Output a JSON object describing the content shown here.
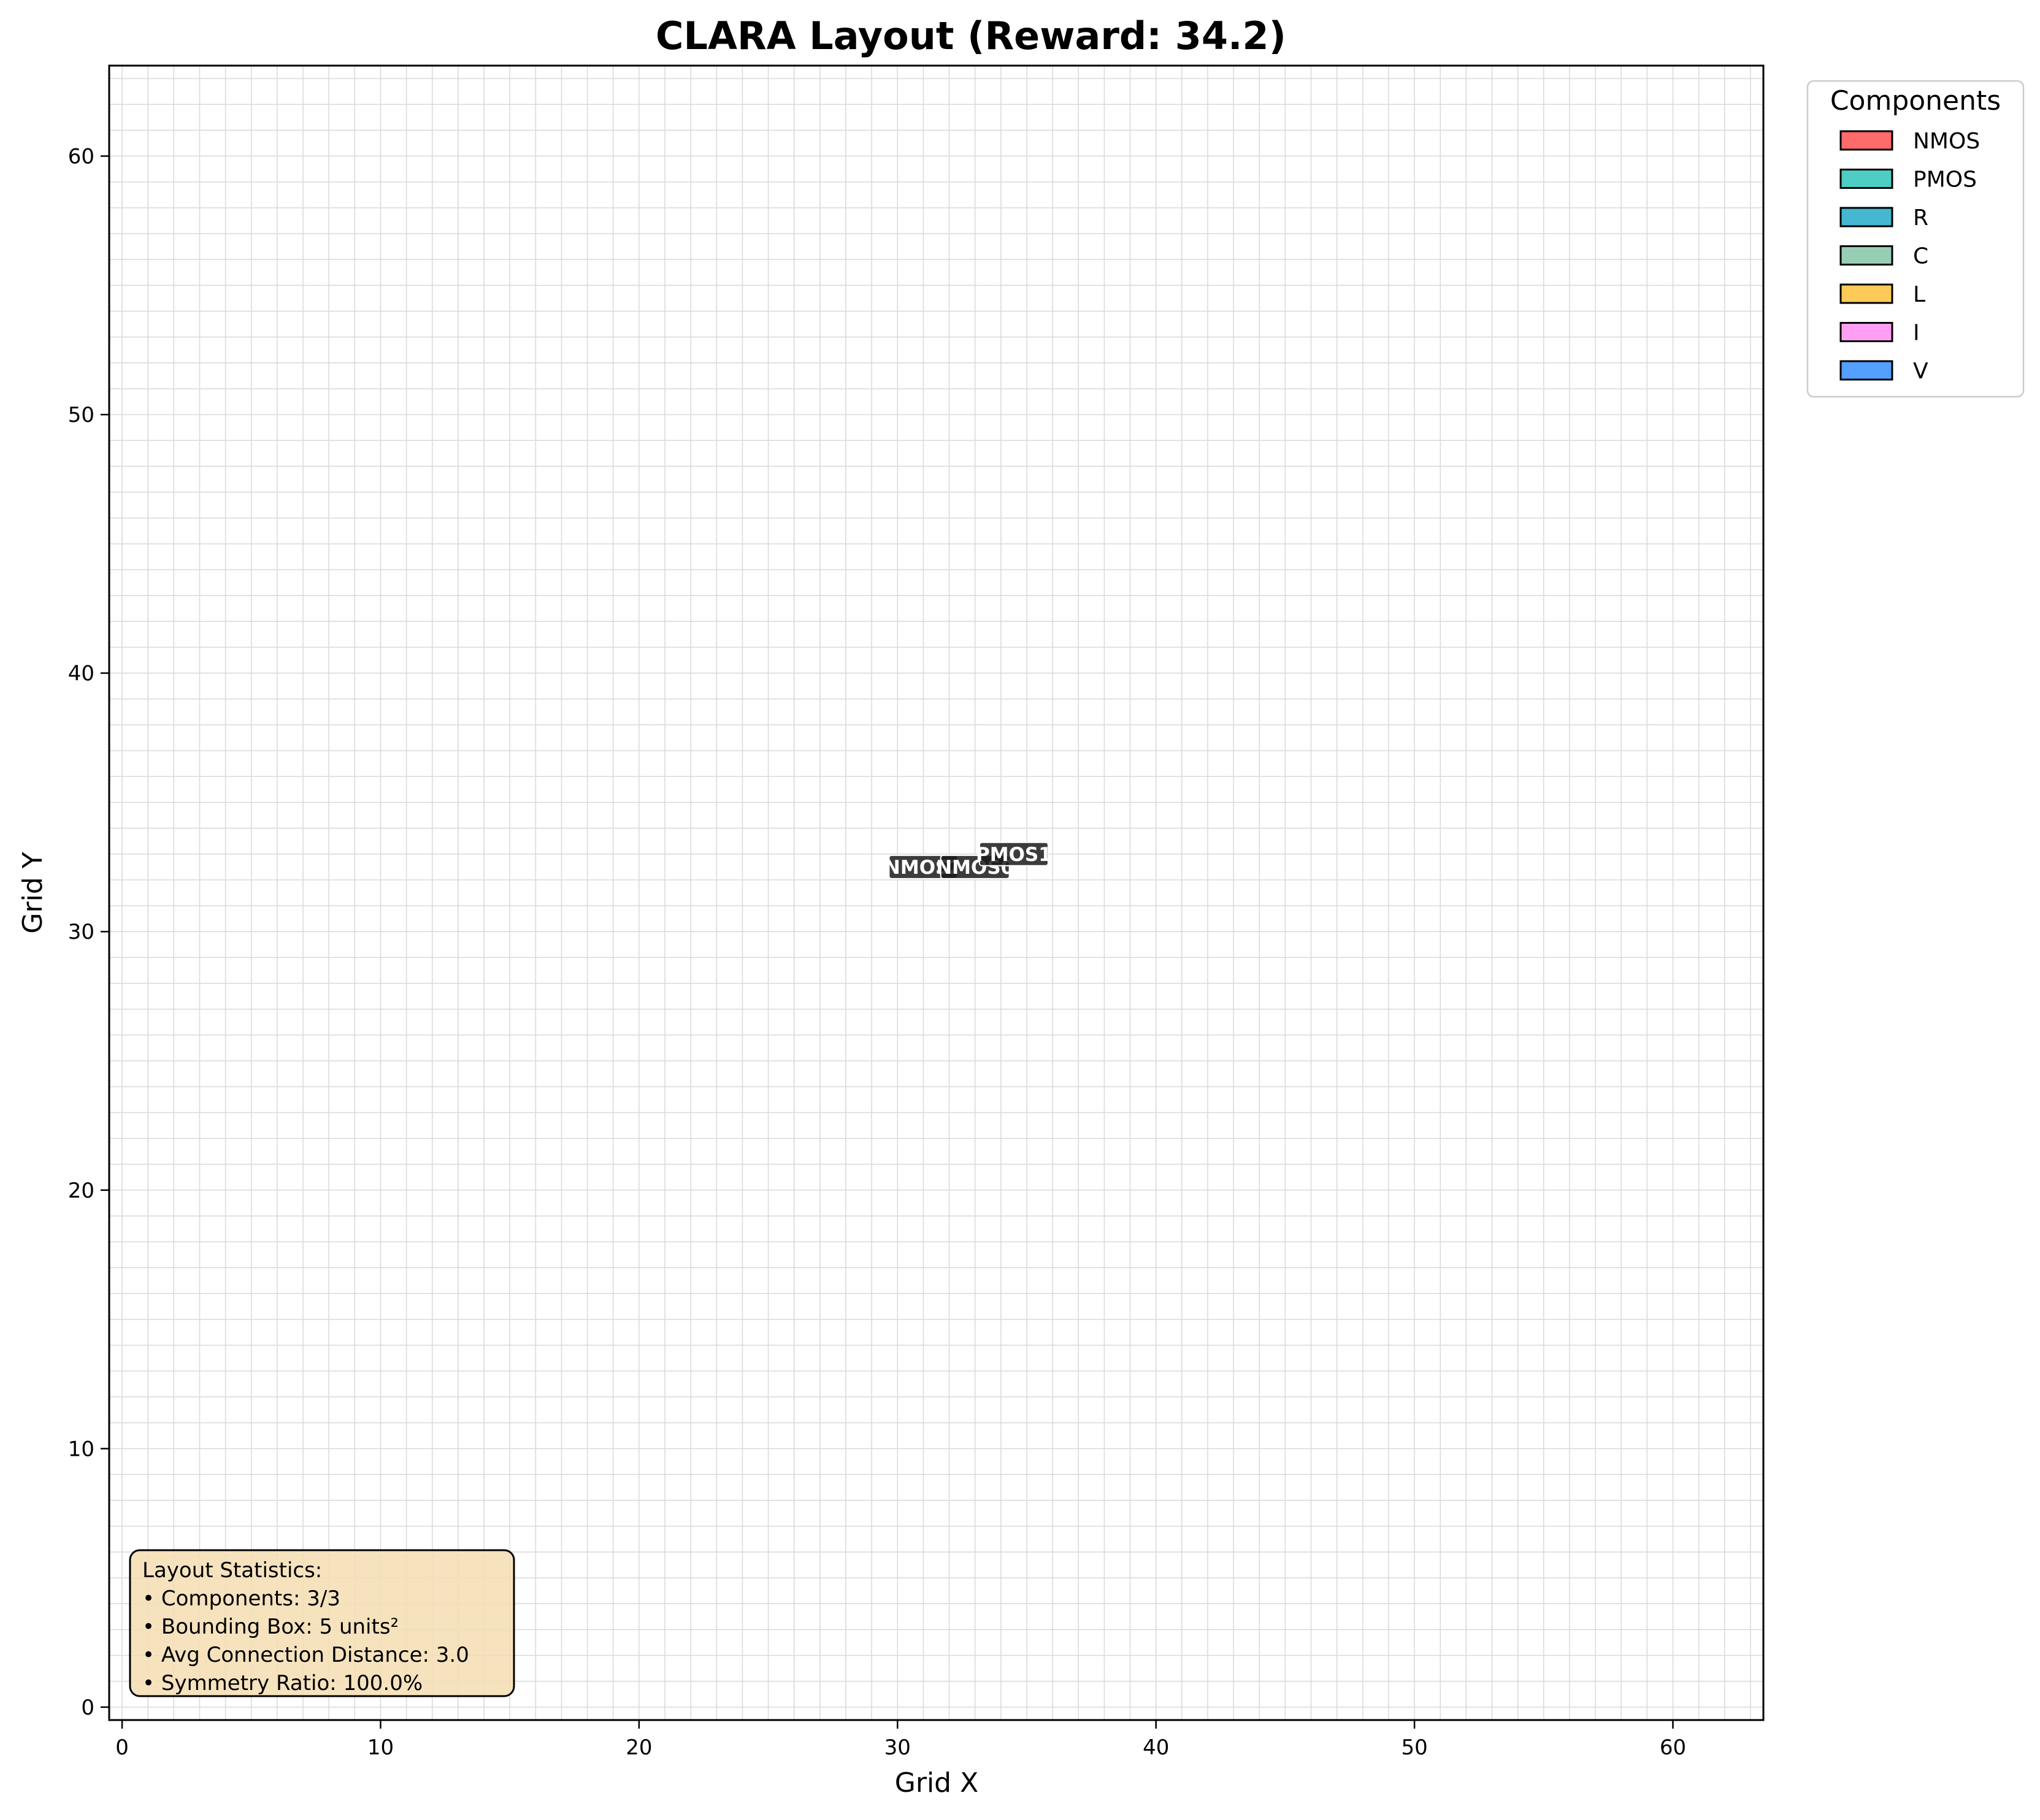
{
  "chart_data": {
    "type": "scatter",
    "title": "CLARA Layout (Reward: 34.2)",
    "xlabel": "Grid X",
    "ylabel": "Grid Y",
    "xlim": [
      -0.5,
      63.5
    ],
    "ylim": [
      63.5,
      -0.5
    ],
    "y_inverted": true,
    "grid": true,
    "xticks": [
      0,
      10,
      20,
      30,
      40,
      50,
      60
    ],
    "yticks": [
      0,
      10,
      20,
      30,
      40,
      50,
      60
    ],
    "legend": {
      "title": "Components",
      "placement": "outside-top-right",
      "entries": [
        {
          "label": "NMOS",
          "color": "#ff6b6b"
        },
        {
          "label": "PMOS",
          "color": "#4ecdc4"
        },
        {
          "label": "R",
          "color": "#45b7d1"
        },
        {
          "label": "C",
          "color": "#96ceb4"
        },
        {
          "label": "L",
          "color": "#feca57"
        },
        {
          "label": "I",
          "color": "#ff9ff3"
        },
        {
          "label": "V",
          "color": "#54a0ff"
        }
      ]
    },
    "components": [
      {
        "name": "NMOS2",
        "type": "NMOS",
        "x": 30,
        "y": 32,
        "w": 2,
        "h": 1,
        "color": "#ff6b6b"
      },
      {
        "name": "NMOS0",
        "type": "NMOS",
        "x": 32,
        "y": 32,
        "w": 2,
        "h": 1,
        "color": "#ff6b6b"
      },
      {
        "name": "PMOS1",
        "type": "PMOS",
        "x": 34,
        "y": 32,
        "w": 1,
        "h": 2,
        "color": "#4ecdc4"
      }
    ],
    "labels": [
      {
        "text": "NMOS2",
        "x": 31,
        "y": 32.5
      },
      {
        "text": "NMOS0",
        "x": 33,
        "y": 32.5
      },
      {
        "text": "PMOS1",
        "x": 34.5,
        "y": 33
      }
    ],
    "stats": {
      "heading": "Layout Statistics:",
      "lines": [
        "• Components: 3/3",
        "• Bounding Box: 5 units²",
        "• Avg Connection Distance: 3.0",
        "• Symmetry Ratio: 100.0%"
      ]
    }
  }
}
